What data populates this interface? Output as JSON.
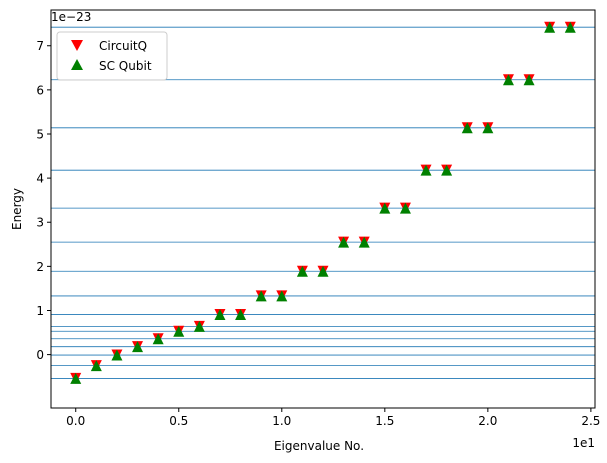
{
  "chart_data": {
    "type": "scatter",
    "xlabel": "Eigenvalue No.",
    "ylabel": "Energy",
    "x_offset_text": "1e1",
    "y_offset_text": "1e−23",
    "xlim": [
      -1.2,
      25.2
    ],
    "ylim": [
      -1.21,
      7.81
    ],
    "x_ticks": [
      0,
      5,
      10,
      15,
      20,
      25
    ],
    "x_tick_labels": [
      "0.0",
      "0.5",
      "1.0",
      "1.5",
      "2.0",
      "2.5"
    ],
    "y_ticks": [
      0,
      1,
      2,
      3,
      4,
      5,
      6,
      7
    ],
    "y_tick_labels": [
      "0",
      "1",
      "2",
      "3",
      "4",
      "5",
      "6",
      "7"
    ],
    "hlines": [
      -0.54,
      -0.25,
      -0.01,
      0.18,
      0.36,
      0.53,
      0.64,
      0.91,
      1.33,
      1.89,
      2.55,
      3.32,
      4.18,
      5.14,
      6.23,
      7.42
    ],
    "x": [
      0,
      1,
      2,
      3,
      4,
      5,
      6,
      7,
      8,
      9,
      10,
      11,
      12,
      13,
      14,
      15,
      16,
      17,
      18,
      19,
      20,
      21,
      22,
      23,
      24
    ],
    "series": [
      {
        "name": "CircuitQ",
        "marker": "triangle-down",
        "color": "#ff0000",
        "values": [
          -0.54,
          -0.25,
          -0.01,
          0.18,
          0.36,
          0.53,
          0.64,
          0.91,
          0.91,
          1.33,
          1.33,
          1.89,
          1.89,
          2.55,
          2.55,
          3.32,
          3.32,
          4.18,
          4.18,
          5.14,
          5.14,
          6.23,
          6.23,
          7.42,
          7.42
        ]
      },
      {
        "name": "SC Qubit",
        "marker": "triangle-up",
        "color": "#008000",
        "values": [
          -0.54,
          -0.25,
          -0.01,
          0.18,
          0.36,
          0.53,
          0.64,
          0.91,
          0.91,
          1.33,
          1.33,
          1.89,
          1.89,
          2.55,
          2.55,
          3.32,
          3.32,
          4.18,
          4.18,
          5.14,
          5.14,
          6.23,
          6.23,
          7.42,
          7.42
        ]
      }
    ],
    "hline_color": "#1f77b4",
    "grid": false,
    "legend_position": "top-left"
  }
}
